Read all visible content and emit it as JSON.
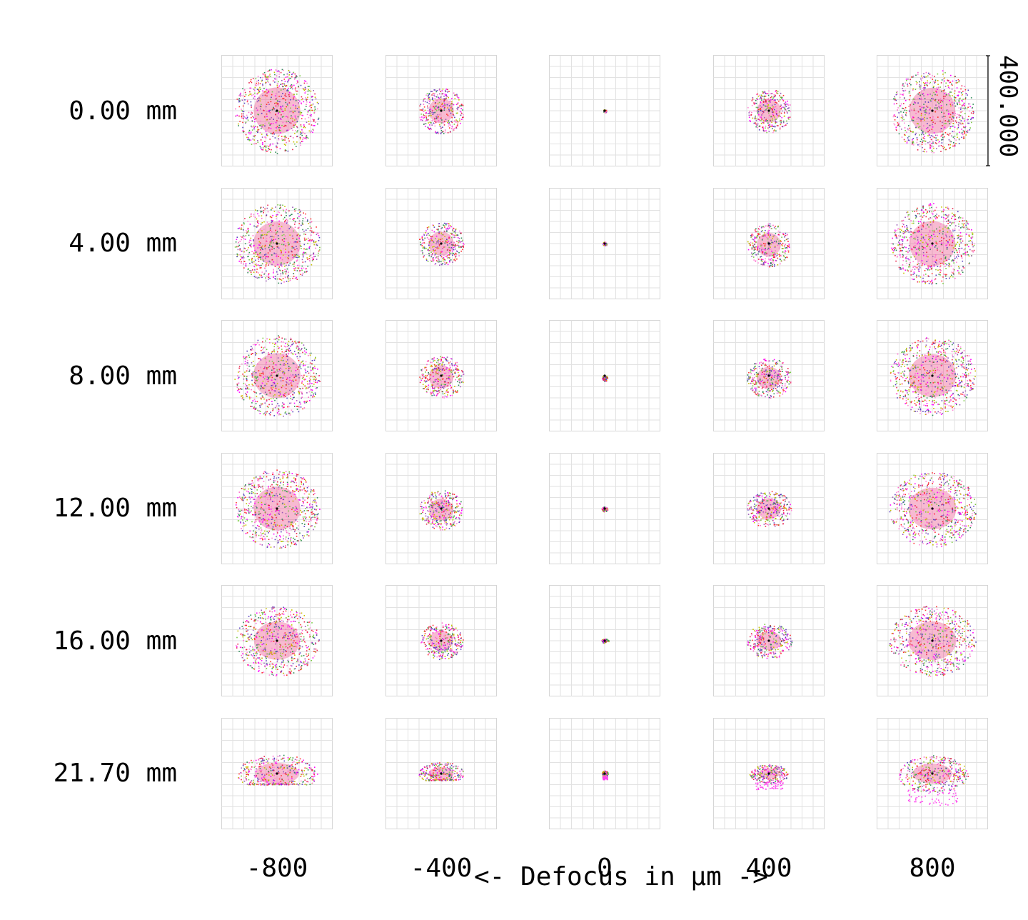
{
  "chart_data": {
    "type": "scatter",
    "title": "",
    "xlabel": "<- Defocus in µm ->",
    "scale_label": "400.000",
    "row_labels": [
      "0.00 mm",
      "4.00 mm",
      "8.00 mm",
      "12.00 mm",
      "16.00 mm",
      "21.70 mm"
    ],
    "col_labels": [
      "-800",
      "-400",
      "0",
      "400",
      "800"
    ],
    "field_mm": [
      0.0,
      4.0,
      8.0,
      12.0,
      16.0,
      21.7
    ],
    "defocus_um": [
      -800,
      -400,
      0,
      400,
      800
    ],
    "grid": true,
    "grid_divisions": 10,
    "scale_um": 400,
    "spot_shape": [
      [
        {
          "rx": 0.78,
          "ry": 0.78,
          "dy": 0.0,
          "cut": 0,
          "tail": 0
        },
        {
          "rx": 0.42,
          "ry": 0.42,
          "dy": 0.0,
          "cut": 0,
          "tail": 0
        },
        {
          "rx": 0.03,
          "ry": 0.03,
          "dy": 0.0,
          "cut": 0,
          "tail": 0
        },
        {
          "rx": 0.4,
          "ry": 0.4,
          "dy": 0.0,
          "cut": 0,
          "tail": 0
        },
        {
          "rx": 0.77,
          "ry": 0.77,
          "dy": 0.0,
          "cut": 0,
          "tail": 0
        }
      ],
      [
        {
          "rx": 0.79,
          "ry": 0.74,
          "dy": 0.0,
          "cut": 0,
          "tail": 0
        },
        {
          "rx": 0.42,
          "ry": 0.4,
          "dy": 0.0,
          "cut": 0,
          "tail": 0
        },
        {
          "rx": 0.04,
          "ry": 0.04,
          "dy": 0.0,
          "cut": 0,
          "tail": 0
        },
        {
          "rx": 0.4,
          "ry": 0.4,
          "dy": 0.02,
          "cut": 0,
          "tail": 0
        },
        {
          "rx": 0.77,
          "ry": 0.75,
          "dy": 0.0,
          "cut": 0,
          "tail": 0
        }
      ],
      [
        {
          "rx": 0.79,
          "ry": 0.75,
          "dy": 0.0,
          "cut": 0,
          "tail": 0
        },
        {
          "rx": 0.41,
          "ry": 0.39,
          "dy": 0.02,
          "cut": 0,
          "tail": 0
        },
        {
          "rx": 0.05,
          "ry": 0.06,
          "dy": 0.04,
          "cut": 0,
          "tail": 0
        },
        {
          "rx": 0.41,
          "ry": 0.37,
          "dy": 0.04,
          "cut": 0,
          "tail": 0
        },
        {
          "rx": 0.79,
          "ry": 0.72,
          "dy": 0.0,
          "cut": 0,
          "tail": 0
        }
      ],
      [
        {
          "rx": 0.78,
          "ry": 0.73,
          "dy": 0.0,
          "cut": 0,
          "tail": 0
        },
        {
          "rx": 0.41,
          "ry": 0.37,
          "dy": 0.02,
          "cut": 0,
          "tail": 0
        },
        {
          "rx": 0.06,
          "ry": 0.05,
          "dy": 0.01,
          "cut": 0,
          "tail": 0
        },
        {
          "rx": 0.41,
          "ry": 0.35,
          "dy": 0.0,
          "cut": 0,
          "tail": 0
        },
        {
          "rx": 0.8,
          "ry": 0.7,
          "dy": 0.0,
          "cut": 0,
          "tail": 0
        }
      ],
      [
        {
          "rx": 0.77,
          "ry": 0.64,
          "dy": 0.0,
          "cut": 0,
          "tail": 0
        },
        {
          "rx": 0.4,
          "ry": 0.34,
          "dy": 0.0,
          "cut": 0,
          "tail": 0
        },
        {
          "rx": 0.07,
          "ry": 0.04,
          "dy": 0.0,
          "cut": 0,
          "tail": 0
        },
        {
          "rx": 0.42,
          "ry": 0.32,
          "dy": 0.0,
          "cut": 0,
          "tail": 0
        },
        {
          "rx": 0.8,
          "ry": 0.65,
          "dy": 0.0,
          "cut": 0,
          "tail": 0
        }
      ],
      [
        {
          "rx": 0.74,
          "ry": 0.36,
          "dy": 0.0,
          "cut": 1,
          "tail": 0
        },
        {
          "rx": 0.42,
          "ry": 0.22,
          "dy": 0.0,
          "cut": 1,
          "tail": 0
        },
        {
          "rx": 0.06,
          "ry": 0.06,
          "dy": 0.0,
          "cut": 0,
          "tail": 1
        },
        {
          "rx": 0.36,
          "ry": 0.17,
          "dy": 0.0,
          "cut": 0,
          "tail": 1
        },
        {
          "rx": 0.66,
          "ry": 0.34,
          "dy": 0.0,
          "cut": 0,
          "tail": 1
        }
      ]
    ]
  },
  "colors": {
    "background": "#ffffff",
    "grid_line": "#e2e2e2",
    "frame": "#d6d6d6",
    "text": "#000000",
    "rays": [
      "#ff00ff",
      "#e8244c",
      "#7ac943",
      "#ff66cc",
      "#c8c000",
      "#5a3fbf",
      "#ff3030",
      "#2e8b57",
      "#ff8ad8",
      "#9b59b6"
    ],
    "core": "#e83a7a",
    "center_dot": "#000000"
  }
}
